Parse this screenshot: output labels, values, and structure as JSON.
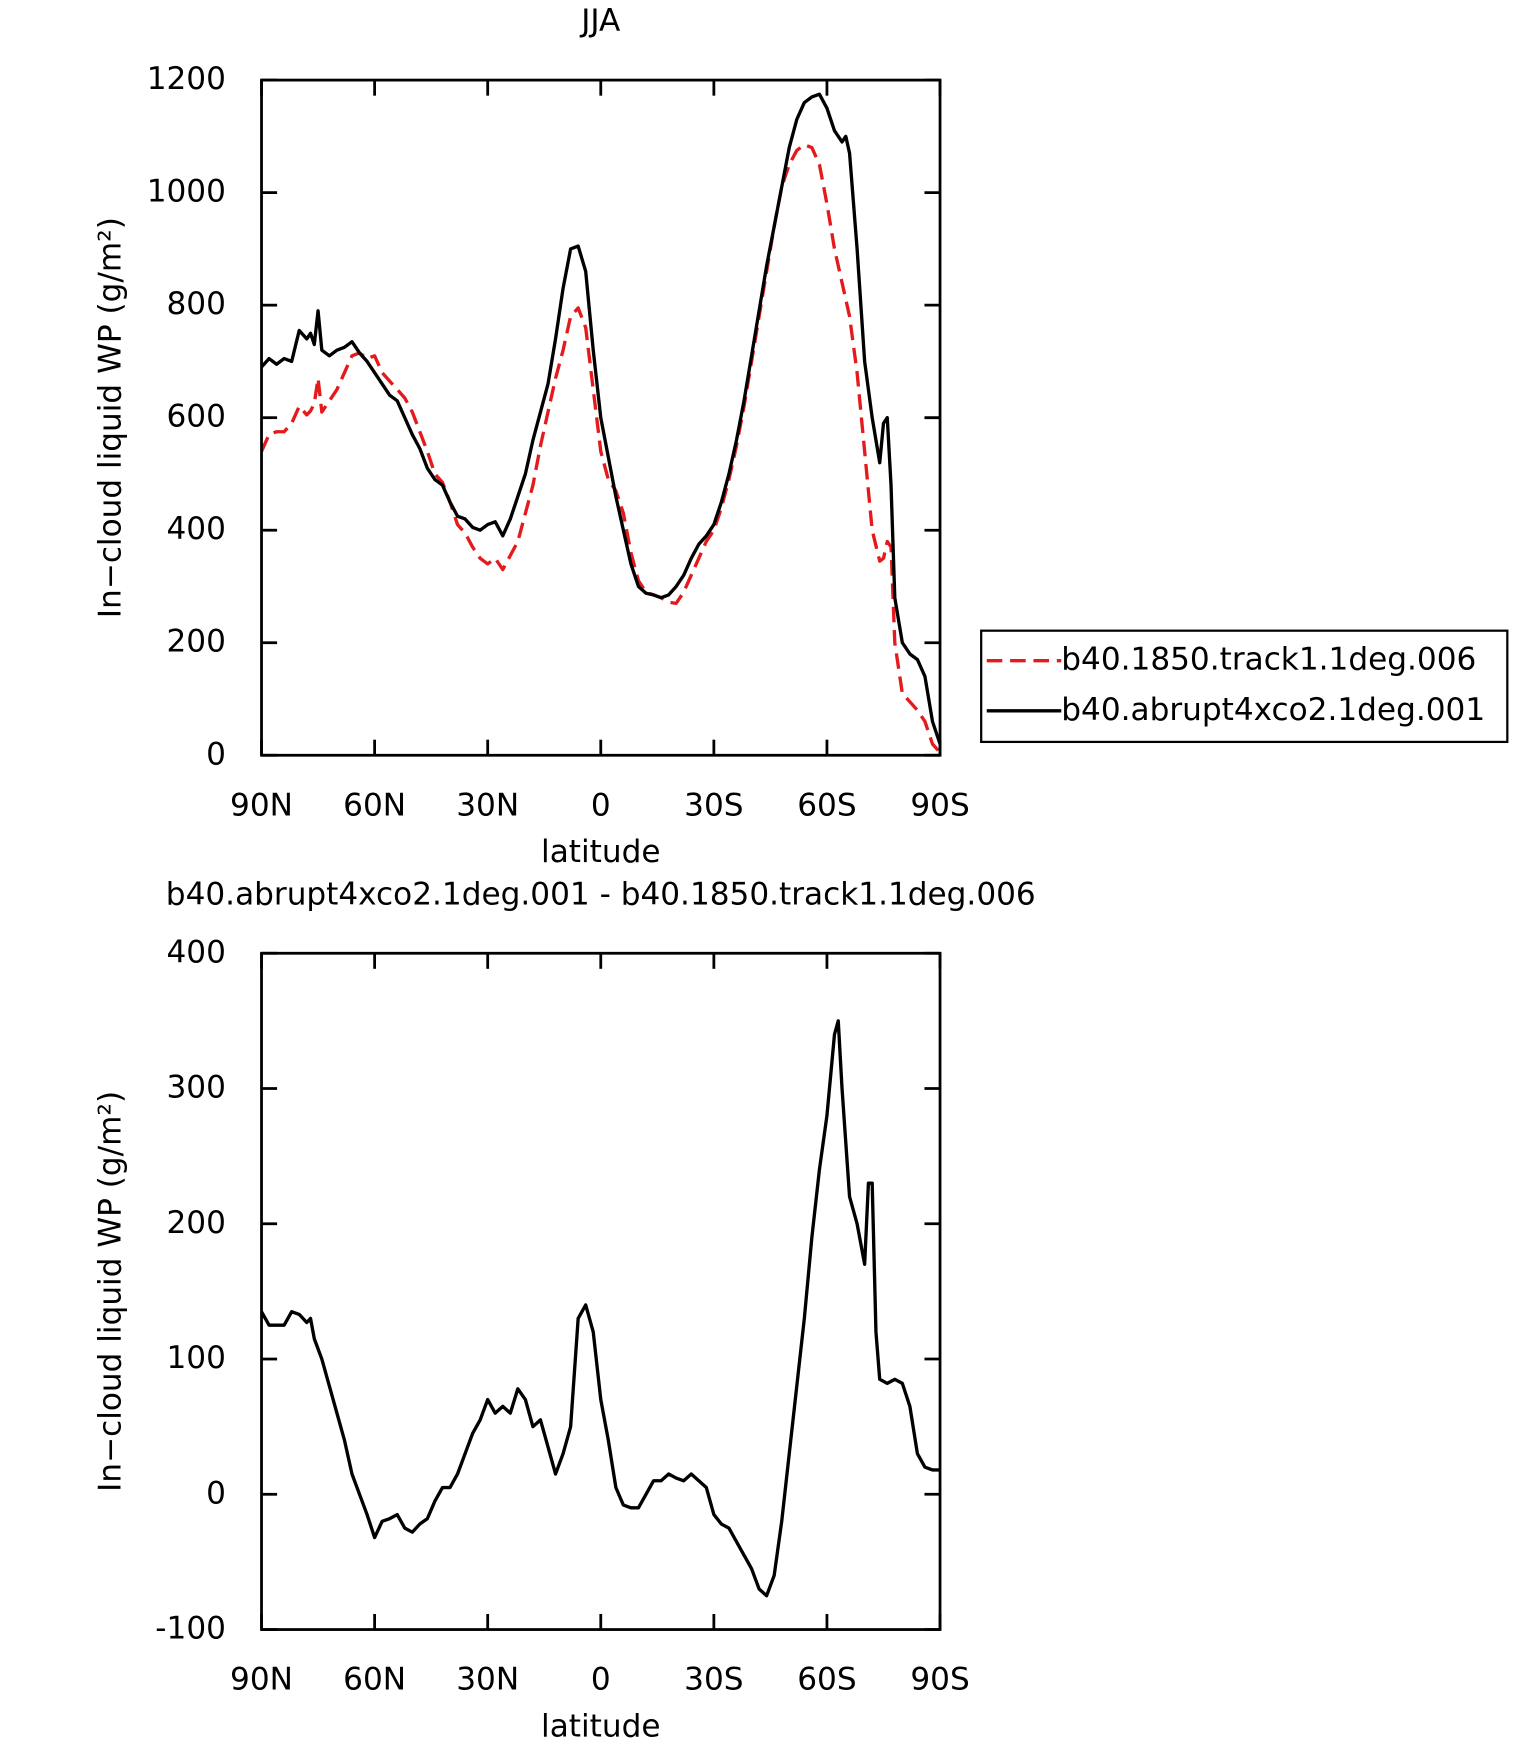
{
  "chart_data": [
    {
      "type": "line",
      "title": "JJA",
      "xlabel": "latitude",
      "ylabel": "In−cloud liquid WP (g/m²)",
      "x": [
        90,
        88,
        86,
        84,
        82,
        80,
        78,
        77,
        76,
        75,
        74,
        72,
        70,
        68,
        66,
        64,
        62,
        60,
        58,
        56,
        54,
        52,
        50,
        48,
        46,
        44,
        42,
        40,
        38,
        36,
        34,
        32,
        30,
        28,
        26,
        24,
        22,
        20,
        18,
        16,
        14,
        12,
        10,
        8,
        6,
        4,
        2,
        0,
        -2,
        -4,
        -6,
        -8,
        -10,
        -12,
        -14,
        -16,
        -18,
        -20,
        -22,
        -24,
        -26,
        -28,
        -30,
        -32,
        -34,
        -36,
        -38,
        -40,
        -42,
        -44,
        -46,
        -48,
        -50,
        -52,
        -54,
        -56,
        -58,
        -60,
        -62,
        -64,
        -65,
        -66,
        -68,
        -70,
        -72,
        -74,
        -75,
        -76,
        -77,
        -78,
        -80,
        -82,
        -84,
        -86,
        -88,
        -90
      ],
      "xlim": [
        90,
        -90
      ],
      "xticks": [
        {
          "value": 90,
          "label": "90N"
        },
        {
          "value": 60,
          "label": "60N"
        },
        {
          "value": 30,
          "label": "30N"
        },
        0,
        {
          "value": -30,
          "label": "30S"
        },
        {
          "value": -60,
          "label": "60S"
        },
        {
          "value": -90,
          "label": "90S"
        }
      ],
      "ylim": [
        0,
        1200
      ],
      "yticks": [
        0,
        200,
        400,
        600,
        800,
        1000,
        1200
      ],
      "legend": "right",
      "series": [
        {
          "name": "b40.1850.track1.1deg.006",
          "color": "#e41a1c",
          "dash": true,
          "values": [
            540,
            570,
            575,
            575,
            590,
            620,
            605,
            612,
            625,
            670,
            610,
            630,
            650,
            680,
            710,
            715,
            705,
            710,
            680,
            665,
            650,
            635,
            610,
            575,
            540,
            500,
            485,
            450,
            410,
            395,
            370,
            350,
            340,
            350,
            330,
            355,
            380,
            430,
            480,
            550,
            610,
            670,
            720,
            780,
            795,
            760,
            650,
            540,
            490,
            470,
            430,
            360,
            310,
            290,
            285,
            280,
            272,
            270,
            290,
            320,
            350,
            380,
            400,
            440,
            490,
            550,
            620,
            700,
            780,
            860,
            940,
            1010,
            1050,
            1075,
            1085,
            1080,
            1050,
            980,
            900,
            840,
            810,
            780,
            680,
            540,
            400,
            345,
            350,
            380,
            370,
            200,
            110,
            95,
            80,
            60,
            20,
            5
          ]
        },
        {
          "name": "b40.abrupt4xco2.1deg.001",
          "color": "#000000",
          "dash": false,
          "values": [
            690,
            705,
            695,
            705,
            700,
            755,
            740,
            750,
            730,
            790,
            720,
            710,
            720,
            725,
            735,
            715,
            700,
            680,
            660,
            640,
            630,
            600,
            570,
            545,
            510,
            490,
            480,
            450,
            425,
            420,
            405,
            400,
            410,
            415,
            390,
            420,
            460,
            500,
            560,
            610,
            660,
            740,
            830,
            900,
            905,
            860,
            720,
            600,
            530,
            460,
            400,
            340,
            300,
            288,
            285,
            280,
            285,
            300,
            320,
            350,
            375,
            390,
            410,
            450,
            500,
            560,
            630,
            710,
            790,
            870,
            940,
            1010,
            1080,
            1130,
            1160,
            1170,
            1175,
            1150,
            1110,
            1090,
            1100,
            1070,
            900,
            700,
            600,
            520,
            590,
            600,
            480,
            280,
            200,
            180,
            170,
            140,
            60,
            20
          ]
        }
      ]
    },
    {
      "type": "line",
      "title": "b40.abrupt4xco2.1deg.001 - b40.1850.track1.1deg.006",
      "xlabel": "latitude",
      "ylabel": "In−cloud liquid WP (g/m²)",
      "x": [
        90,
        88,
        86,
        84,
        82,
        80,
        78,
        77,
        76,
        74,
        72,
        70,
        68,
        66,
        64,
        62,
        60,
        58,
        56,
        54,
        52,
        50,
        48,
        46,
        44,
        42,
        40,
        38,
        36,
        34,
        32,
        30,
        28,
        26,
        24,
        22,
        20,
        18,
        16,
        14,
        12,
        10,
        8,
        6,
        4,
        2,
        0,
        -2,
        -4,
        -6,
        -8,
        -10,
        -12,
        -14,
        -16,
        -18,
        -20,
        -22,
        -24,
        -26,
        -28,
        -30,
        -32,
        -34,
        -36,
        -38,
        -40,
        -42,
        -44,
        -46,
        -48,
        -50,
        -52,
        -54,
        -56,
        -58,
        -60,
        -62,
        -63,
        -64,
        -66,
        -68,
        -70,
        -71,
        -72,
        -73,
        -74,
        -76,
        -78,
        -80,
        -82,
        -84,
        -86,
        -88,
        -90
      ],
      "xlim": [
        90,
        -90
      ],
      "xticks": [
        {
          "value": 90,
          "label": "90N"
        },
        {
          "value": 60,
          "label": "60N"
        },
        {
          "value": 30,
          "label": "30N"
        },
        0,
        {
          "value": -30,
          "label": "30S"
        },
        {
          "value": -60,
          "label": "60S"
        },
        {
          "value": -90,
          "label": "90S"
        }
      ],
      "ylim": [
        -100,
        400
      ],
      "yticks": [
        -100,
        0,
        100,
        200,
        300,
        400
      ],
      "series": [
        {
          "color": "#000000",
          "dash": false,
          "values": [
            135,
            125,
            125,
            125,
            135,
            133,
            127,
            130,
            115,
            100,
            80,
            60,
            40,
            15,
            0,
            -15,
            -32,
            -20,
            -18,
            -15,
            -25,
            -28,
            -22,
            -18,
            -5,
            5,
            5,
            15,
            30,
            45,
            55,
            70,
            60,
            65,
            60,
            78,
            70,
            50,
            55,
            35,
            15,
            30,
            50,
            130,
            140,
            120,
            70,
            40,
            5,
            -8,
            -10,
            -10,
            0,
            10,
            10,
            15,
            12,
            10,
            15,
            10,
            5,
            -15,
            -22,
            -25,
            -35,
            -45,
            -55,
            -70,
            -75,
            -60,
            -20,
            30,
            80,
            130,
            190,
            240,
            280,
            340,
            350,
            300,
            220,
            200,
            170,
            230,
            230,
            120,
            85,
            82,
            85,
            82,
            65,
            30,
            20,
            18,
            18
          ]
        }
      ]
    }
  ]
}
